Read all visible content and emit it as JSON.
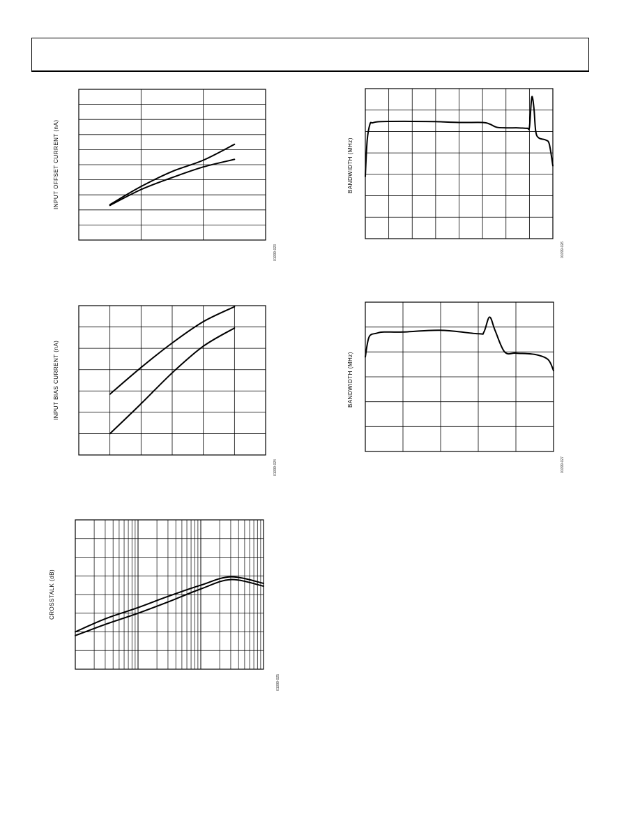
{
  "page": {
    "header_text": ""
  },
  "chart_data": [
    {
      "id": "offset",
      "type": "line",
      "ylabel": "INPUT OFFSET CURRENT (nA)",
      "figure_id": "01099-023",
      "xlim": [
        0,
        3
      ],
      "ylim": [
        0,
        10
      ],
      "x_gridlines": [
        1,
        2
      ],
      "y_gridlines": [
        1,
        2,
        3,
        4,
        5,
        6,
        7,
        8,
        9
      ],
      "series": [
        {
          "x": [
            0.5,
            1.0,
            1.5,
            2.0,
            2.5
          ],
          "y": [
            2.35,
            3.55,
            4.55,
            5.3,
            6.35
          ]
        },
        {
          "x": [
            0.5,
            1.0,
            1.5,
            2.0,
            2.5
          ],
          "y": [
            2.3,
            3.35,
            4.15,
            4.85,
            5.35
          ]
        }
      ]
    },
    {
      "id": "bias",
      "type": "line",
      "ylabel": "INPUT BIAS CURRENT (nA)",
      "figure_id": "01099-024",
      "xlim": [
        0,
        6
      ],
      "ylim": [
        0,
        7
      ],
      "x_gridlines": [
        1,
        2,
        3,
        4,
        5
      ],
      "y_gridlines": [
        1,
        2,
        3,
        4,
        5,
        6
      ],
      "series": [
        {
          "x": [
            1,
            2,
            3,
            4,
            5
          ],
          "y": [
            2.85,
            4.1,
            5.25,
            6.25,
            6.95
          ]
        },
        {
          "x": [
            1,
            2,
            3,
            4,
            5
          ],
          "y": [
            1.0,
            2.4,
            3.85,
            5.1,
            5.95
          ]
        }
      ]
    },
    {
      "id": "crosstalk",
      "type": "line",
      "ylabel": "CROSSTALK (dB)",
      "figure_id": "01099-025",
      "xscale": "log",
      "xlim": [
        1,
        1000
      ],
      "ylim": [
        0,
        8
      ],
      "y_gridlines": [
        1,
        2,
        3,
        4,
        5,
        6,
        7
      ],
      "series": [
        {
          "x": [
            1,
            3,
            10,
            30,
            100,
            300,
            1000
          ],
          "y": [
            2.0,
            2.7,
            3.3,
            3.9,
            4.5,
            4.95,
            4.6
          ]
        },
        {
          "x": [
            1,
            3,
            10,
            30,
            100,
            300,
            1000
          ],
          "y": [
            1.8,
            2.4,
            3.0,
            3.6,
            4.3,
            4.8,
            4.45
          ]
        }
      ]
    },
    {
      "id": "bandwidth1",
      "type": "line",
      "ylabel": "BANDWIDTH (MHz)",
      "figure_id": "01099-026",
      "xlim": [
        0,
        8
      ],
      "ylim": [
        0,
        7
      ],
      "x_gridlines": [
        1,
        2,
        3,
        4,
        5,
        6,
        7
      ],
      "y_gridlines": [
        1,
        2,
        3,
        4,
        5,
        6
      ],
      "series": [
        {
          "x": [
            0.0,
            0.08,
            0.2,
            0.3,
            0.5,
            1.0,
            2.0,
            3.0,
            4.0,
            5.0,
            5.3,
            5.6,
            6.0,
            6.5,
            6.9,
            7.0,
            7.08,
            7.13,
            7.2,
            7.27,
            7.4,
            7.7,
            7.85,
            8.0
          ],
          "y": [
            2.9,
            4.6,
            5.35,
            5.4,
            5.45,
            5.47,
            5.47,
            5.46,
            5.42,
            5.42,
            5.35,
            5.2,
            5.17,
            5.17,
            5.15,
            5.2,
            6.4,
            6.6,
            6.0,
            5.0,
            4.7,
            4.6,
            4.4,
            3.4
          ]
        }
      ]
    },
    {
      "id": "bandwidth2",
      "type": "line",
      "ylabel": "BANDWIDTH (MHz)",
      "figure_id": "01099-027",
      "xlim": [
        0,
        5
      ],
      "ylim": [
        0,
        6
      ],
      "x_gridlines": [
        1,
        2,
        3,
        4
      ],
      "y_gridlines": [
        1,
        2,
        3,
        4,
        5
      ],
      "series": [
        {
          "x": [
            0.0,
            0.1,
            0.3,
            0.5,
            1.0,
            2.0,
            3.0,
            3.15,
            3.3,
            3.45,
            3.7,
            4.0,
            4.5,
            4.85,
            5.0
          ],
          "y": [
            3.8,
            4.6,
            4.75,
            4.8,
            4.8,
            4.87,
            4.73,
            4.8,
            5.4,
            4.85,
            4.0,
            3.95,
            3.9,
            3.7,
            3.25
          ]
        }
      ]
    }
  ]
}
